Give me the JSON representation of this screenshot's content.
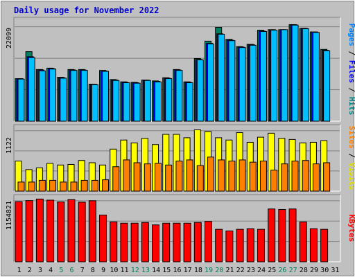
{
  "chart_data": {
    "type": "bar",
    "title": "Daily usage for November 2022",
    "x": [
      "1",
      "2",
      "3",
      "4",
      "5",
      "6",
      "7",
      "8",
      "9",
      "10",
      "11",
      "12",
      "13",
      "14",
      "15",
      "16",
      "17",
      "18",
      "19",
      "20",
      "21",
      "22",
      "23",
      "24",
      "25",
      "26",
      "27",
      "28",
      "29",
      "30",
      "31"
    ],
    "weekend_days": [
      "5",
      "6",
      "12",
      "13",
      "19",
      "20",
      "26",
      "27"
    ],
    "panels": [
      {
        "name": "pages-files-hits",
        "ymax_label": "22099",
        "ymax": 22099,
        "legend": [
          {
            "text": "Pages",
            "color": "#0080ff"
          },
          {
            "text": " / ",
            "color": "#000000"
          },
          {
            "text": "Files",
            "color": "#0000ff"
          },
          {
            "text": " / ",
            "color": "#000000"
          },
          {
            "text": "Hits",
            "color": "#008080"
          }
        ],
        "series": [
          {
            "name": "Hits",
            "color": "#008060",
            "values": [
              9300,
              15200,
              11300,
              11600,
              9600,
              11300,
              11300,
              8100,
              11100,
              9100,
              8600,
              8500,
              9000,
              8800,
              9500,
              11300,
              8600,
              13700,
              17500,
              20500,
              17900,
              16300,
              16800,
              19900,
              20000,
              20000,
              21100,
              20300,
              19500,
              15700,
              null
            ]
          },
          {
            "name": "Files",
            "color": "#0000ff",
            "values": [
              9300,
              14100,
              11200,
              11500,
              9500,
              11200,
              11200,
              8100,
              11000,
              9000,
              8500,
              8400,
              9000,
              8700,
              9400,
              11200,
              8500,
              13500,
              17000,
              19100,
              17700,
              16200,
              16700,
              19700,
              20000,
              20000,
              21100,
              20300,
              19500,
              15500,
              null
            ]
          },
          {
            "name": "Pages",
            "color": "#00c0ff",
            "values": [
              9200,
              13900,
              11000,
              11400,
              9400,
              11100,
              11100,
              8000,
              10900,
              8900,
              8400,
              8300,
              8900,
              8600,
              9300,
              11100,
              8400,
              13400,
              16900,
              19000,
              17600,
              16100,
              16600,
              19600,
              19900,
              20000,
              21000,
              20200,
              19400,
              15400,
              null
            ]
          }
        ]
      },
      {
        "name": "visits-sites",
        "ymax_label": "1122",
        "ymax": 1122,
        "legend": [
          {
            "text": "Sites",
            "color": "#ff8000"
          },
          {
            "text": " / ",
            "color": "#000000"
          },
          {
            "text": "Visits",
            "color": "#e0e000"
          }
        ],
        "series": [
          {
            "name": "Visits",
            "color": "#ffff00",
            "values": [
              530,
              380,
              410,
              490,
              460,
              470,
              540,
              500,
              460,
              740,
              900,
              850,
              930,
              820,
              1000,
              1000,
              940,
              1080,
              1050,
              940,
              900,
              1030,
              860,
              950,
              1020,
              930,
              910,
              850,
              860,
              890,
              null
            ]
          },
          {
            "name": "Sites",
            "color": "#ff8000",
            "values": [
              160,
              160,
              190,
              190,
              160,
              160,
              190,
              190,
              200,
              430,
              550,
              500,
              480,
              490,
              460,
              530,
              550,
              450,
              600,
              550,
              530,
              550,
              510,
              530,
              370,
              480,
              530,
              540,
              480,
              500,
              null
            ]
          }
        ]
      },
      {
        "name": "kbytes",
        "ymax_label": "1154821",
        "ymax": 1154821,
        "legend": [
          {
            "text": "KBytes",
            "color": "#ff0000"
          }
        ],
        "series": [
          {
            "name": "KBytes",
            "color": "#ff0000",
            "values": [
              1077000,
              1097000,
              1125000,
              1105000,
              1072000,
              1115000,
              1069000,
              1095000,
              837000,
              715000,
              692000,
              692000,
              705000,
              661000,
              692000,
              692000,
              692000,
              705000,
              724000,
              582000,
              553000,
              582000,
              593000,
              582000,
              947000,
              938000,
              947000,
              715000,
              593000,
              582000,
              null
            ]
          }
        ]
      }
    ]
  }
}
